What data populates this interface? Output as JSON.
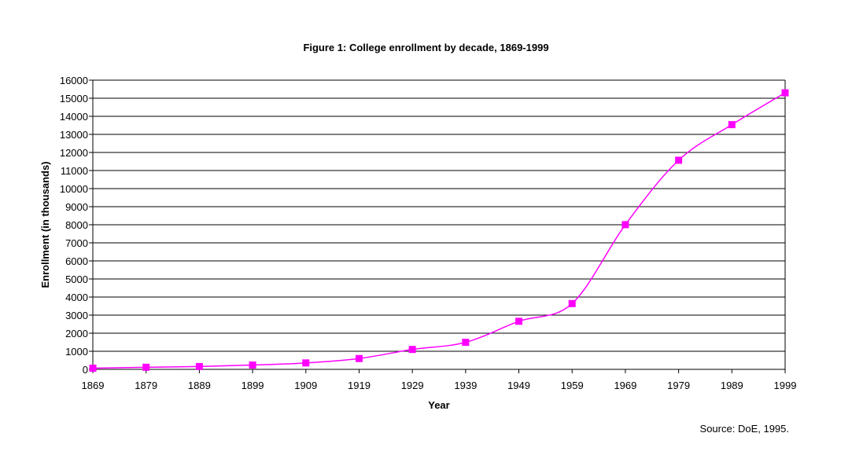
{
  "chart_data": {
    "type": "line",
    "title": "Figure 1:  College enrollment by decade, 1869-1999",
    "xlabel": "Year",
    "ylabel": "Enrollment (in thousands)",
    "x": [
      1869,
      1879,
      1889,
      1899,
      1909,
      1919,
      1929,
      1939,
      1949,
      1959,
      1969,
      1979,
      1989,
      1999
    ],
    "series": [
      {
        "name": "Enrollment",
        "values": [
          63,
          116,
          157,
          238,
          355,
          598,
          1101,
          1494,
          2659,
          3640,
          8005,
          11570,
          13539,
          15300
        ],
        "color": "#ff00ff"
      }
    ],
    "ylim": [
      0,
      16000
    ],
    "yticks": [
      0,
      1000,
      2000,
      3000,
      4000,
      5000,
      6000,
      7000,
      8000,
      9000,
      10000,
      11000,
      12000,
      13000,
      14000,
      15000,
      16000
    ],
    "grid": true,
    "source": "Source:  DoE, 1995."
  }
}
